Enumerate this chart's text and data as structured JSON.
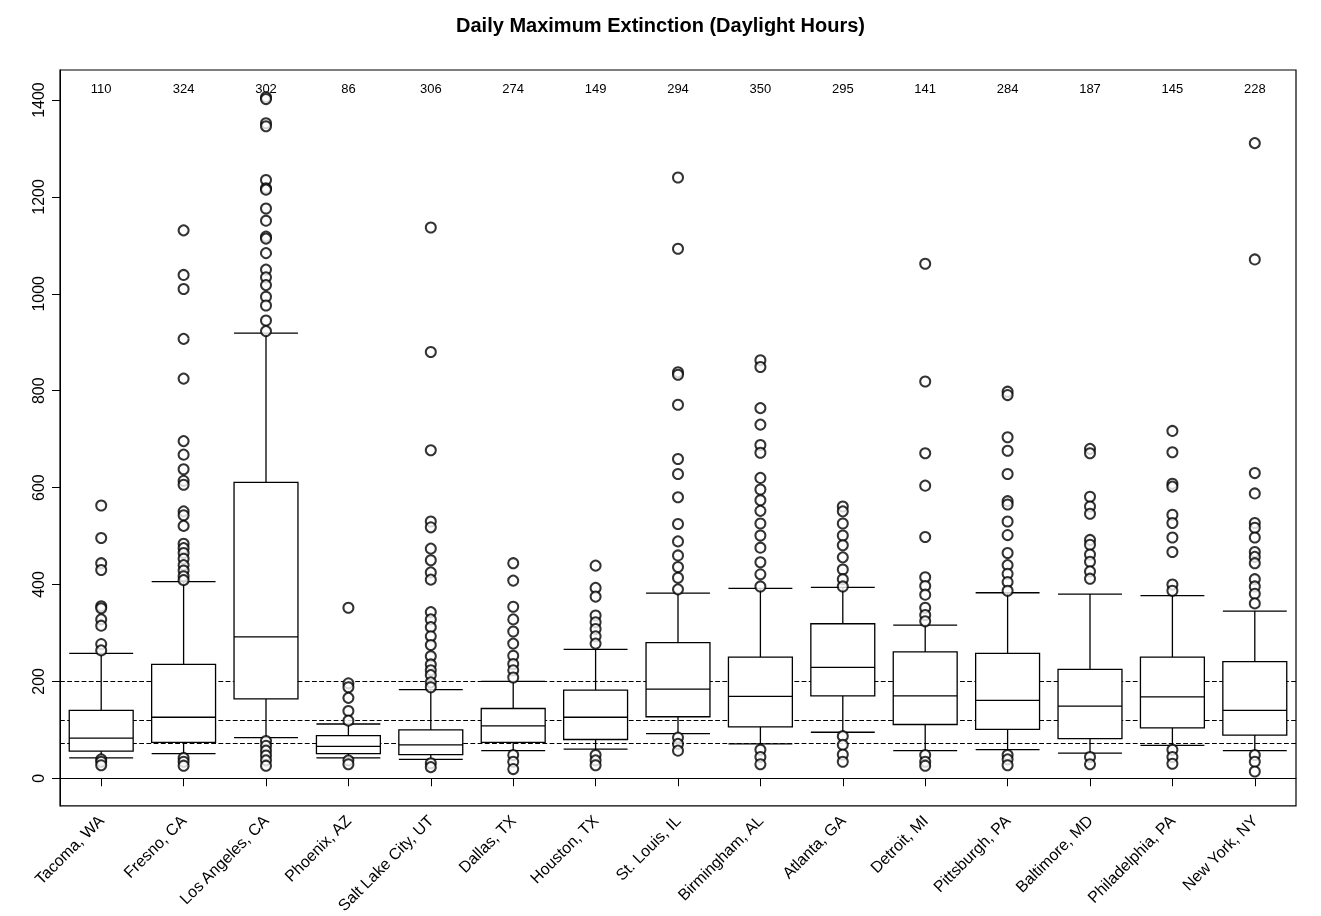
{
  "chart_data": {
    "type": "box",
    "title": "Daily Maximum Extinction (Daylight Hours)",
    "categories": [
      "Tacoma, WA",
      "Fresno, CA",
      "Los Angeles, CA",
      "Phoenix, AZ",
      "Salt Lake City, UT",
      "Dallas, TX",
      "Houston, TX",
      "St. Louis, IL",
      "Birmingham, AL",
      "Atlanta, GA",
      "Detroit, MI",
      "Pittsburgh, PA",
      "Baltimore, MD",
      "Philadelphia, PA",
      "New York, NY"
    ],
    "boxes": [
      {
        "low": 42,
        "q1": 56,
        "median": 83,
        "q3": 140,
        "high": 258,
        "outliers": [
          563,
          496,
          444,
          430,
          355,
          351,
          328,
          315,
          277,
          264,
          39,
          34,
          27
        ]
      },
      {
        "low": 51,
        "q1": 74,
        "median": 126,
        "q3": 235,
        "high": 406,
        "outliers": [
          1131,
          1039,
          1010,
          907,
          825,
          696,
          668,
          638,
          614,
          606,
          551,
          543,
          521,
          484,
          475,
          465,
          453,
          440,
          429,
          417,
          409,
          42,
          34,
          26
        ]
      },
      {
        "low": 84,
        "q1": 164,
        "median": 292,
        "q3": 611,
        "high": 919,
        "outliers": [
          1406,
          1402,
          1352,
          1346,
          1235,
          1218,
          1215,
          1176,
          1151,
          1118,
          1114,
          1084,
          1050,
          1034,
          1018,
          994,
          976,
          945,
          923,
          77,
          67,
          57,
          47,
          37,
          26
        ]
      },
      {
        "low": 42,
        "q1": 51,
        "median": 66,
        "q3": 88,
        "high": 112,
        "outliers": [
          352,
          196,
          188,
          166,
          139,
          119,
          37,
          29
        ]
      },
      {
        "low": 39,
        "q1": 49,
        "median": 69,
        "q3": 100,
        "high": 183,
        "outliers": [
          1137,
          880,
          677,
          530,
          518,
          474,
          450,
          425,
          410,
          343,
          328,
          312,
          293,
          275,
          252,
          235,
          223,
          213,
          198,
          188,
          31,
          23
        ]
      },
      {
        "low": 57,
        "q1": 74,
        "median": 108,
        "q3": 144,
        "high": 200,
        "outliers": [
          444,
          408,
          354,
          328,
          303,
          278,
          253,
          236,
          223,
          208,
          48,
          34,
          19
        ]
      },
      {
        "low": 60,
        "q1": 80,
        "median": 126,
        "q3": 182,
        "high": 266,
        "outliers": [
          439,
          393,
          375,
          336,
          322,
          308,
          293,
          278,
          48,
          37,
          27
        ]
      },
      {
        "low": 92,
        "q1": 127,
        "median": 184,
        "q3": 280,
        "high": 382,
        "outliers": [
          1240,
          1093,
          838,
          833,
          771,
          659,
          628,
          580,
          525,
          489,
          460,
          436,
          414,
          390,
          84,
          71,
          57
        ]
      },
      {
        "low": 71,
        "q1": 106,
        "median": 169,
        "q3": 250,
        "high": 392,
        "outliers": [
          863,
          849,
          764,
          730,
          688,
          672,
          620,
          596,
          574,
          552,
          526,
          501,
          476,
          446,
          421,
          396,
          59,
          44,
          29
        ]
      },
      {
        "low": 95,
        "q1": 170,
        "median": 229,
        "q3": 319,
        "high": 394,
        "outliers": [
          561,
          551,
          526,
          501,
          481,
          456,
          431,
          411,
          396,
          87,
          69,
          49,
          34
        ]
      },
      {
        "low": 57,
        "q1": 111,
        "median": 170,
        "q3": 261,
        "high": 316,
        "outliers": [
          1062,
          819,
          671,
          604,
          498,
          415,
          397,
          379,
          352,
          337,
          324,
          48,
          34,
          26
        ]
      },
      {
        "low": 59,
        "q1": 101,
        "median": 161,
        "q3": 258,
        "high": 383,
        "outliers": [
          798,
          791,
          704,
          676,
          628,
          572,
          565,
          530,
          502,
          465,
          440,
          422,
          405,
          387,
          48,
          39,
          27
        ]
      },
      {
        "low": 52,
        "q1": 82,
        "median": 149,
        "q3": 225,
        "high": 380,
        "outliers": [
          680,
          671,
          581,
          561,
          546,
          492,
          482,
          462,
          447,
          427,
          412,
          44,
          29
        ]
      },
      {
        "low": 68,
        "q1": 104,
        "median": 168,
        "q3": 250,
        "high": 377,
        "outliers": [
          717,
          673,
          608,
          602,
          544,
          527,
          497,
          467,
          400,
          387,
          59,
          44,
          30
        ]
      },
      {
        "low": 57,
        "q1": 89,
        "median": 140,
        "q3": 241,
        "high": 345,
        "outliers": [
          1311,
          1071,
          630,
          588,
          527,
          517,
          497,
          467,
          457,
          444,
          411,
          396,
          381,
          361,
          48,
          34,
          14
        ]
      }
    ],
    "ylim": [
      -57,
      1462
    ],
    "yticks": [
      0,
      200,
      400,
      600,
      800,
      1000,
      1200,
      1400
    ],
    "grid": false,
    "legend": false,
    "marker": "circle",
    "ref_lines": [
      {
        "axis": "y",
        "value": 200,
        "line_style": "dashed",
        "color": "#000000"
      },
      {
        "axis": "y",
        "value": 120,
        "line_style": "dashed",
        "color": "#000000"
      },
      {
        "axis": "y",
        "value": 72,
        "line_style": "dashed",
        "color": "#000000"
      }
    ],
    "annotations": [
      "110",
      "324",
      "302",
      "86",
      "306",
      "274",
      "149",
      "294",
      "350",
      "295",
      "141",
      "284",
      "187",
      "145",
      "228"
    ]
  }
}
